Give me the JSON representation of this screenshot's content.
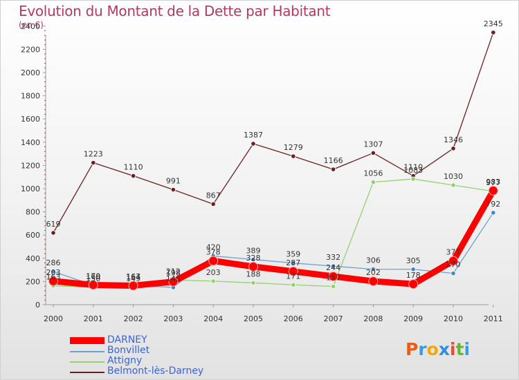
{
  "title": "Evolution du Montant de la Dette par Habitant",
  "unit_label": "(en €)",
  "logo": {
    "text": "Proxiti",
    "letters": [
      "P",
      "r",
      "o",
      "x",
      "i",
      "t",
      "i"
    ],
    "colors": [
      "#e85d1a",
      "#3b9be0",
      "#f2a900",
      "#2f8fdc",
      "#e64a3c",
      "#66b82e",
      "#3b9be0"
    ]
  },
  "colors": {
    "title": "#b03a64",
    "legend_text": "#3b63d8"
  },
  "chart_data": {
    "type": "line",
    "title": "Evolution du Montant de la Dette par Habitant",
    "ylabel": "(en €)",
    "xlabel": "",
    "x": [
      "2000",
      "2001",
      "2002",
      "2003",
      "2004",
      "2005",
      "2006",
      "2007",
      "2008",
      "2009",
      "2010",
      "2011"
    ],
    "ylim": [
      0,
      2500
    ],
    "yticks": [
      "0",
      "200",
      "400",
      "600",
      "800",
      "1000",
      "1200",
      "1400",
      "1600",
      "1800",
      "2000",
      "2200",
      "2400"
    ],
    "grid": false,
    "legend_position": "bottom-left",
    "series": [
      {
        "name": "Belmont-lès-Darney",
        "color": "#6b1f24",
        "marker": "#6b1f24",
        "values": [
          619,
          1223,
          1110,
          991,
          867,
          1387,
          1279,
          1166,
          1307,
          1110,
          1346,
          2345
        ],
        "labels": [
          "619",
          "1223",
          "1110",
          "991",
          "867",
          "1387",
          "1279",
          "1166",
          "1307",
          "1110",
          "1346",
          "2345"
        ]
      },
      {
        "name": "Attigny",
        "color": "#92d16b",
        "marker": "#92d16b",
        "values": [
          163,
          150,
          149,
          212,
          203,
          188,
          171,
          157,
          1056,
          1083,
          1030,
          977
        ],
        "labels": [
          "163",
          "150",
          "149",
          "212",
          "203",
          "188",
          "171",
          "157",
          "1056",
          "1083",
          "1030",
          "977"
        ]
      },
      {
        "name": "Bonvillet",
        "color": "#6aa2cf",
        "marker": "#3f86cc",
        "values": [
          286,
          168,
          167,
          149,
          420,
          389,
          359,
          332,
          306,
          305,
          270,
          792
        ],
        "labels": [
          "286",
          "168",
          "167",
          "149",
          "420",
          "389",
          "359",
          "332",
          "306",
          "305",
          "270",
          "792"
        ]
      },
      {
        "name": "DARNEY",
        "color": "#ff0000",
        "marker": "#ff0000",
        "values": [
          203,
          170,
          164,
          198,
          378,
          328,
          287,
          244,
          202,
          178,
          377,
          983
        ],
        "labels": [
          "203",
          "170",
          "164",
          "198",
          "378",
          "328",
          "287",
          "244",
          "202",
          "178",
          "377",
          "983"
        ]
      }
    ]
  },
  "legend": [
    {
      "label": "DARNEY",
      "color": "#ff0000",
      "thick": true
    },
    {
      "label": "Bonvillet",
      "color": "#6aa2cf",
      "thick": false
    },
    {
      "label": "Attigny",
      "color": "#92d16b",
      "thick": false
    },
    {
      "label": "Belmont-lès-Darney",
      "color": "#6b1f24",
      "thick": false
    }
  ]
}
